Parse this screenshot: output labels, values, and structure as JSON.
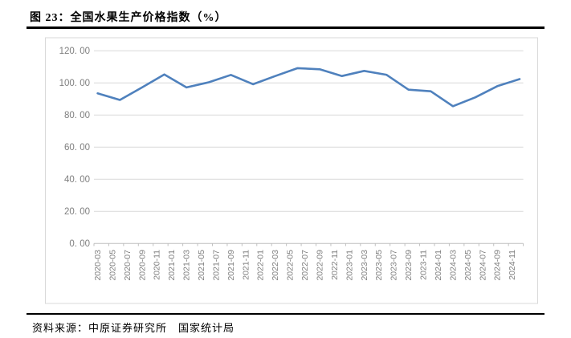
{
  "header": {
    "title": "图 23：全国水果生产价格指数（%）"
  },
  "footer": {
    "source_label": "资料来源：中原证券研究所　国家统计局"
  },
  "colors": {
    "line": "#4F81BD",
    "gridline": "#D9D9D9",
    "axis_line": "#BFBFBF",
    "chart_border": "#D9D9D9",
    "tick_label": "#7F7F7F",
    "title_text": "#000000",
    "background": "#FFFFFF"
  },
  "chart_data": {
    "type": "line",
    "title": "全国水果生产价格指数（%）",
    "xlabel": "",
    "ylabel": "",
    "ylim": [
      0,
      120
    ],
    "grid": "horizontal",
    "legend": "none",
    "y_tick_values": [
      0,
      20,
      40,
      60,
      80,
      100,
      120
    ],
    "y_tick_labels": [
      "0. 00",
      "20. 00",
      "40. 00",
      "60. 00",
      "80. 00",
      "100. 00",
      "120. 00"
    ],
    "x_axis_tick_labels": [
      "2020-03",
      "2020-05",
      "2020-07",
      "2020-09",
      "2020-11",
      "2021-01",
      "2021-03",
      "2021-05",
      "2021-07",
      "2021-09",
      "2021-11",
      "2022-01",
      "2022-03",
      "2022-05",
      "2022-07",
      "2022-09",
      "2022-11",
      "2023-01",
      "2023-03",
      "2023-05",
      "2023-07",
      "2023-09",
      "2023-11",
      "2024-01",
      "2024-03",
      "2024-05",
      "2024-07",
      "2024-09",
      "2024-11"
    ],
    "x": [
      "2020-03",
      "2020-06",
      "2020-09",
      "2020-12",
      "2021-03",
      "2021-06",
      "2021-09",
      "2021-12",
      "2022-03",
      "2022-06",
      "2022-09",
      "2022-12",
      "2023-03",
      "2023-06",
      "2023-09",
      "2023-12",
      "2024-03",
      "2024-06",
      "2024-09",
      "2024-12"
    ],
    "series": [
      {
        "name": "全国水果生产价格指数",
        "values": [
          93.5,
          89.4,
          97.2,
          105.3,
          97.2,
          100.4,
          105.0,
          99.2,
          104.3,
          109.2,
          108.5,
          104.3,
          107.5,
          105.1,
          95.8,
          94.8,
          85.5,
          91.0,
          98.0,
          102.4
        ]
      }
    ]
  }
}
